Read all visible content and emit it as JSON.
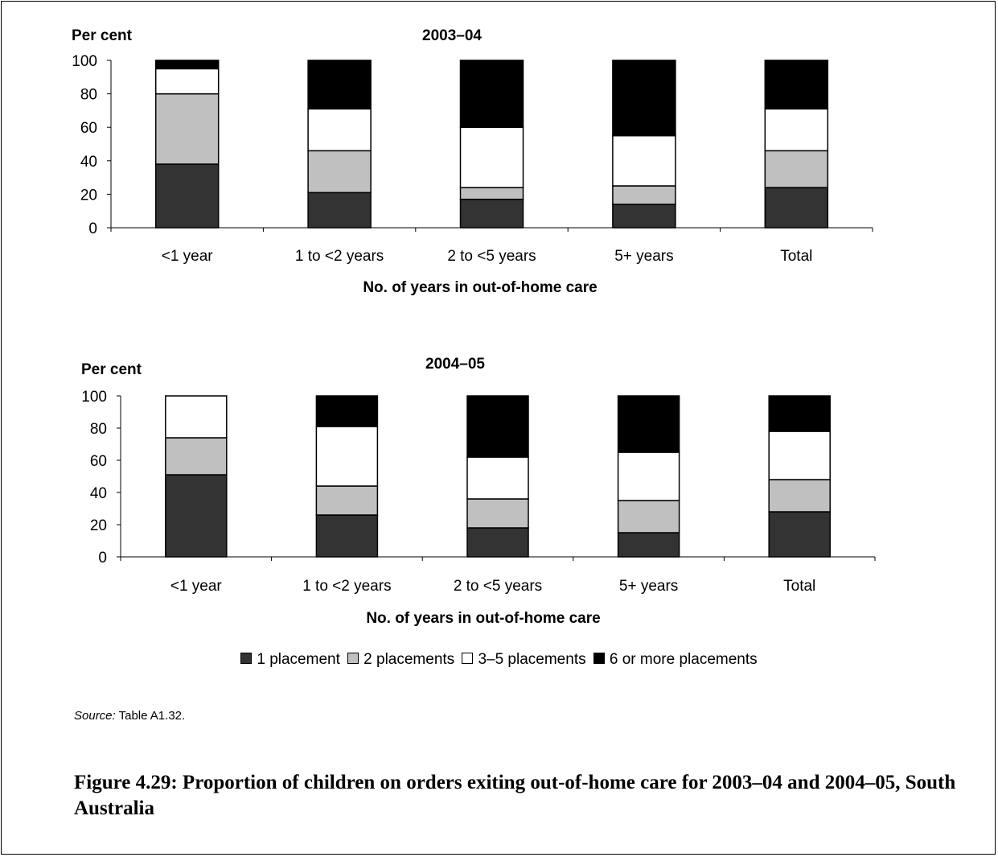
{
  "chart_data": [
    {
      "type": "bar",
      "stacked": true,
      "title": "2003–04",
      "ylabel": "Per cent",
      "xlabel": "No. of years in out-of-home care",
      "ylim": [
        0,
        100
      ],
      "yticks": [
        "0",
        "20",
        "40",
        "60",
        "80",
        "100"
      ],
      "categories": [
        "<1 year",
        "1 to <2 years",
        "2 to <5 years",
        "5+ years",
        "Total"
      ],
      "series": [
        {
          "name": "1 placement",
          "color": "#333333",
          "values": [
            38,
            21,
            17,
            14,
            24
          ]
        },
        {
          "name": "2 placements",
          "color": "#c0c0c0",
          "values": [
            42,
            25,
            7,
            11,
            22
          ]
        },
        {
          "name": "3–5 placements",
          "color": "#ffffff",
          "values": [
            15,
            25,
            36,
            30,
            25
          ]
        },
        {
          "name": "6 or more placements",
          "color": "#000000",
          "values": [
            5,
            29,
            40,
            45,
            29
          ]
        }
      ],
      "grid": false
    },
    {
      "type": "bar",
      "stacked": true,
      "title": "2004–05",
      "ylabel": "Per cent",
      "xlabel": "No. of years in out-of-home care",
      "ylim": [
        0,
        100
      ],
      "yticks": [
        "0",
        "20",
        "40",
        "60",
        "80",
        "100"
      ],
      "categories": [
        "<1 year",
        "1 to <2 years",
        "2 to <5 years",
        "5+ years",
        "Total"
      ],
      "series": [
        {
          "name": "1 placement",
          "color": "#333333",
          "values": [
            51,
            26,
            18,
            15,
            28
          ]
        },
        {
          "name": "2 placements",
          "color": "#c0c0c0",
          "values": [
            23,
            18,
            18,
            20,
            20
          ]
        },
        {
          "name": "3–5 placements",
          "color": "#ffffff",
          "values": [
            26,
            37,
            26,
            30,
            30
          ]
        },
        {
          "name": "6 or more placements",
          "color": "#000000",
          "values": [
            0,
            19,
            38,
            35,
            22
          ]
        }
      ],
      "grid": false
    }
  ],
  "legend": {
    "placement": "bottom",
    "items": [
      {
        "label": "1 placement",
        "color": "#333333"
      },
      {
        "label": "2 placements",
        "color": "#c0c0c0"
      },
      {
        "label": "3–5 placements",
        "color": "#ffffff"
      },
      {
        "label": "6 or more placements",
        "color": "#000000"
      }
    ]
  },
  "source": {
    "prefix": "Source:",
    "text": " Table A1.32."
  },
  "caption": "Figure 4.29: Proportion of children on orders exiting out-of-home care for 2003–04 and 2004–05, South Australia"
}
